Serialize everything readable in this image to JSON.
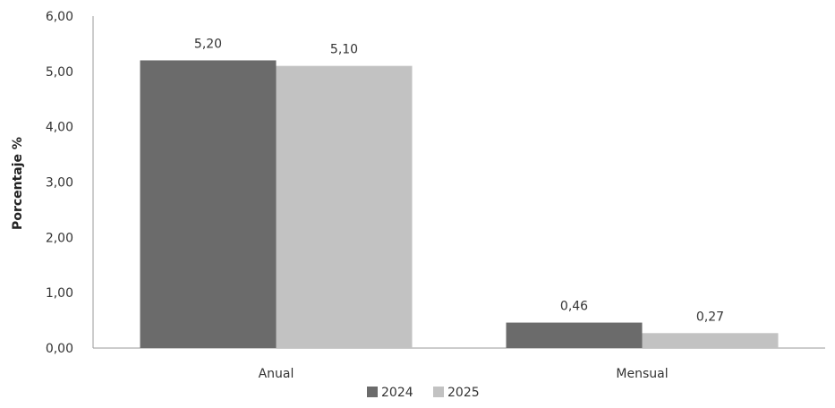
{
  "chart_data": {
    "type": "bar",
    "categories": [
      "Anual",
      "Mensual"
    ],
    "series": [
      {
        "name": "2024",
        "values": [
          5.2,
          0.46
        ],
        "labels": [
          "5,20",
          "0,46"
        ],
        "color": "#6b6b6b"
      },
      {
        "name": "2025",
        "values": [
          5.1,
          0.27
        ],
        "labels": [
          "5,10",
          "0,27"
        ],
        "color": "#c2c2c2"
      }
    ],
    "ylabel": "Porcentaje %",
    "xlabel": "",
    "ylim": [
      0,
      6
    ],
    "yticks": [
      0,
      1,
      2,
      3,
      4,
      5,
      6
    ],
    "ytick_labels": [
      "0,00",
      "1,00",
      "2,00",
      "3,00",
      "4,00",
      "5,00",
      "6,00"
    ],
    "grid": false,
    "legend_position": "bottom"
  }
}
